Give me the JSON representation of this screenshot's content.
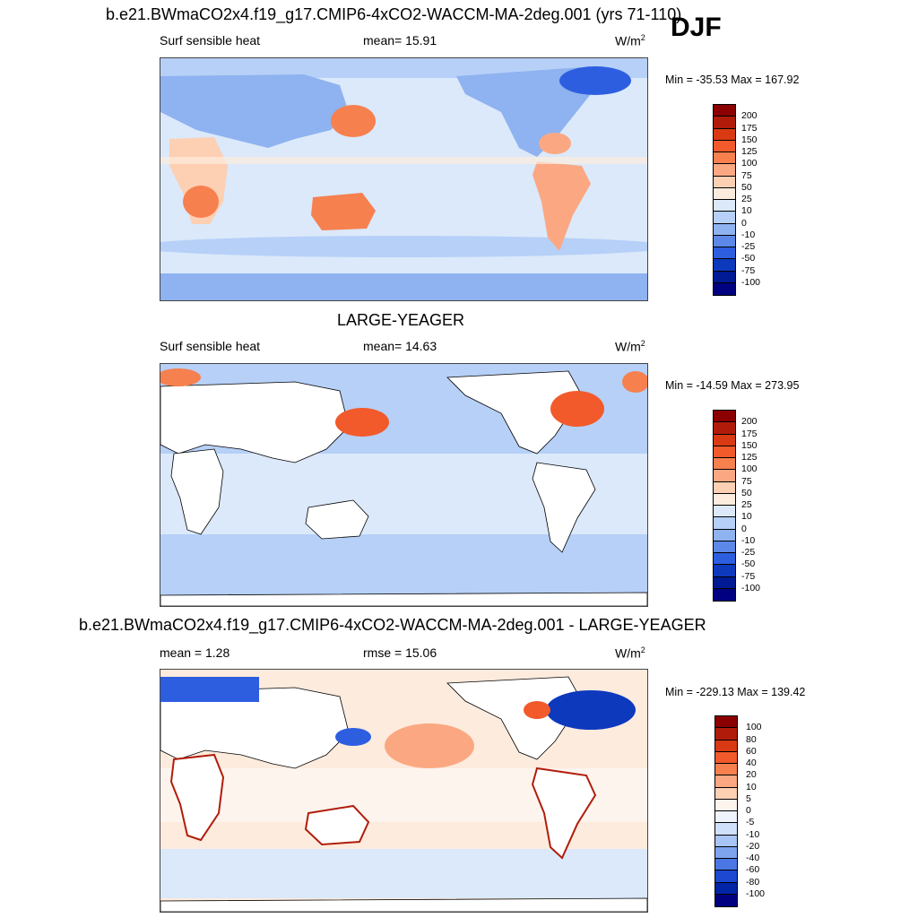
{
  "season": "DJF",
  "panels": [
    {
      "title": "b.e21.BWmaCO2x4.f19_g17.CMIP6-4xCO2-WACCM-MA-2deg.001 (yrs 71-110)",
      "left_label": "Surf sensible heat",
      "mid_label": "mean=  15.91",
      "units_base": "W/m",
      "units_exp": "2",
      "minmax": "Min = -35.53 Max = 167.92",
      "colorbar_ticks": [
        "200",
        "175",
        "150",
        "125",
        "100",
        "75",
        "50",
        "25",
        "10",
        "0",
        "-10",
        "-25",
        "-50",
        "-75",
        "-100"
      ],
      "colorbar_colors": [
        "#8b0000",
        "#b11c0a",
        "#d93a14",
        "#f25a2c",
        "#f7804f",
        "#fba882",
        "#fdcfb3",
        "#fdebdd",
        "#dbe9fb",
        "#b6d0f7",
        "#8fb2f0",
        "#5c89e8",
        "#2e5ee0",
        "#0d39bd",
        "#001a93",
        "#000080"
      ],
      "map_style": "model"
    },
    {
      "title": "LARGE-YEAGER",
      "left_label": "Surf sensible heat",
      "mid_label": "mean=  14.63",
      "units_base": "W/m",
      "units_exp": "2",
      "minmax": "Min = -14.59 Max = 273.95",
      "colorbar_ticks": [
        "200",
        "175",
        "150",
        "125",
        "100",
        "75",
        "50",
        "25",
        "10",
        "0",
        "-10",
        "-25",
        "-50",
        "-75",
        "-100"
      ],
      "colorbar_colors": [
        "#8b0000",
        "#b11c0a",
        "#d93a14",
        "#f25a2c",
        "#f7804f",
        "#fba882",
        "#fdcfb3",
        "#fdebdd",
        "#dbe9fb",
        "#b6d0f7",
        "#8fb2f0",
        "#5c89e8",
        "#2e5ee0",
        "#0d39bd",
        "#001a93",
        "#000080"
      ],
      "map_style": "obs"
    },
    {
      "title": "b.e21.BWmaCO2x4.f19_g17.CMIP6-4xCO2-WACCM-MA-2deg.001 - LARGE-YEAGER",
      "left_label": "mean =   1.28",
      "mid_label": "rmse =  15.06",
      "units_base": "W/m",
      "units_exp": "2",
      "minmax": "Min = -229.13 Max = 139.42",
      "colorbar_ticks": [
        "100",
        "80",
        "60",
        "40",
        "20",
        "10",
        "5",
        "0",
        "-5",
        "-10",
        "-20",
        "-40",
        "-60",
        "-80",
        "-100"
      ],
      "colorbar_colors": [
        "#8b0000",
        "#b11c0a",
        "#d93a14",
        "#f25a2c",
        "#f7804f",
        "#fba882",
        "#fdcfb3",
        "#fdf4ee",
        "#eef3fc",
        "#cfe0fa",
        "#a9c5f5",
        "#7ea4ee",
        "#4a77e4",
        "#1c48d2",
        "#0024a6",
        "#000080"
      ],
      "map_style": "diff"
    }
  ]
}
